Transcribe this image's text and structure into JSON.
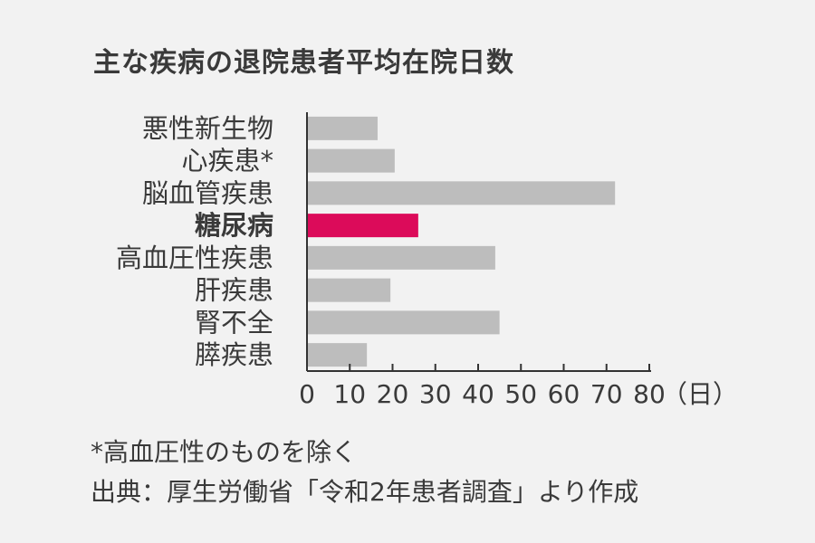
{
  "chart_data": {
    "type": "bar",
    "orientation": "horizontal",
    "title": "主な疾病の退院患者平均在院日数",
    "categories": [
      "悪性新生物",
      "心疾患*",
      "脳血管疾患",
      "糖尿病",
      "高血圧性疾患",
      "肝疾患",
      "腎不全",
      "膵疾患"
    ],
    "values": [
      16.5,
      20.5,
      72,
      26,
      44,
      19.5,
      45,
      14
    ],
    "highlight_category": "糖尿病",
    "highlight_color": "#dc0b5a",
    "bar_color": "#bdbdbd",
    "xlim": [
      0,
      80
    ],
    "xticks": [
      "0",
      "10",
      "20",
      "30",
      "40",
      "50",
      "60",
      "70",
      "80"
    ],
    "unit": "（日）",
    "grid": false,
    "legend": "none"
  },
  "footnote": "*高血圧性のものを除く",
  "source": "出典：厚生労働省「令和2年患者調査」より作成"
}
